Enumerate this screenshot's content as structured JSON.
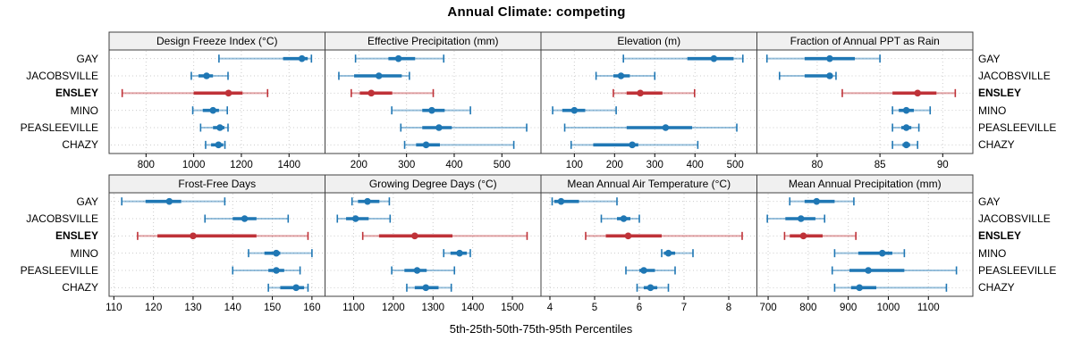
{
  "title": "Annual Climate: competing",
  "caption": "5th-25th-50th-75th-95th Percentiles",
  "colors": {
    "series_blue": "#1f77b4",
    "series_red": "#bf3238",
    "strip_bg": "#f0f0f0",
    "panel_border": "#404040",
    "grid": "#cccccc",
    "text": "#000000"
  },
  "chart_data": {
    "type": "dotplot",
    "subtype": "percentile-intervals (5-25-50-75-95)",
    "title": "Annual Climate: competing",
    "xlabel": "5th-25th-50th-75th-95th Percentiles",
    "layout": {
      "rows": 2,
      "cols": 4
    },
    "grid": "dotted",
    "sites": [
      "GAY",
      "JACOBSVILLE",
      "ENSLEY",
      "MINO",
      "PEASLEEVILLE",
      "CHAZY"
    ],
    "highlight_site": "ENSLEY",
    "percentiles": [
      5,
      25,
      50,
      75,
      95
    ],
    "panels": [
      {
        "title": "Design Freeze Index (°C)",
        "xlim": [
          645,
          1551
        ],
        "ticks": [
          800,
          1000,
          1200,
          1400
        ],
        "series": {
          "GAY": [
            1106,
            1375,
            1454,
            1478,
            1494
          ],
          "JACOBSVILLE": [
            990,
            1020,
            1054,
            1081,
            1144
          ],
          "ENSLEY": [
            700,
            1000,
            1146,
            1205,
            1310
          ],
          "MINO": [
            996,
            1038,
            1081,
            1106,
            1141
          ],
          "PEASLEEVILLE": [
            1029,
            1081,
            1110,
            1129,
            1144
          ],
          "CHAZY": [
            1050,
            1073,
            1104,
            1124,
            1131
          ]
        }
      },
      {
        "title": "Effective Precipitation (mm)",
        "xlim": [
          129,
          582
        ],
        "ticks": [
          200,
          300,
          400,
          500
        ],
        "series": {
          "GAY": [
            193,
            262,
            283,
            318,
            378
          ],
          "JACOBSVILLE": [
            158,
            190,
            242,
            290,
            306
          ],
          "ENSLEY": [
            184,
            202,
            226,
            270,
            356
          ],
          "MINO": [
            269,
            333,
            353,
            380,
            434
          ],
          "PEASLEEVILLE": [
            288,
            333,
            368,
            395,
            552
          ],
          "CHAZY": [
            296,
            320,
            341,
            370,
            525
          ]
        }
      },
      {
        "title": "Elevation (m)",
        "xlim": [
          17,
          554
        ],
        "ticks": [
          100,
          200,
          300,
          400,
          500
        ],
        "series": {
          "GAY": [
            222,
            381,
            447,
            496,
            519
          ],
          "JACOBSVILLE": [
            154,
            197,
            216,
            238,
            300
          ],
          "ENSLEY": [
            197,
            230,
            264,
            319,
            399
          ],
          "MINO": [
            46,
            70,
            100,
            127,
            204
          ],
          "PEASLEEVILLE": [
            76,
            230,
            327,
            393,
            504
          ],
          "CHAZY": [
            92,
            147,
            244,
            259,
            407
          ]
        }
      },
      {
        "title": "Fraction of Annual PPT as Rain",
        "xlim": [
          75.2,
          92.4
        ],
        "ticks": [
          80,
          85,
          90
        ],
        "series": {
          "GAY": [
            76,
            79,
            81,
            83,
            85
          ],
          "JACOBSVILLE": [
            77,
            79,
            81,
            81.2,
            81.5
          ],
          "ENSLEY": [
            82,
            86,
            88,
            89.5,
            91
          ],
          "MINO": [
            86,
            86.5,
            87.1,
            87.7,
            89
          ],
          "PEASLEEVILLE": [
            86,
            86.7,
            87.1,
            87.5,
            88.1
          ],
          "CHAZY": [
            86,
            86.8,
            87.1,
            87.4,
            88
          ]
        }
      },
      {
        "title": "Frost-Free Days",
        "xlim": [
          108.8,
          163.3
        ],
        "ticks": [
          110,
          120,
          130,
          140,
          150,
          160
        ],
        "series": {
          "GAY": [
            112,
            118,
            124,
            127,
            138
          ],
          "JACOBSVILLE": [
            133,
            140,
            143,
            146,
            154
          ],
          "ENSLEY": [
            116,
            121,
            130,
            146,
            159
          ],
          "MINO": [
            144,
            148,
            151,
            152,
            160
          ],
          "PEASLEEVILLE": [
            140,
            149,
            151,
            153,
            157
          ],
          "CHAZY": [
            149,
            152,
            156,
            158,
            159
          ]
        }
      },
      {
        "title": "Growing Degree Days (°C)",
        "xlim": [
          1028,
          1572
        ],
        "ticks": [
          1100,
          1200,
          1300,
          1400,
          1500
        ],
        "series": {
          "GAY": [
            1096,
            1111,
            1135,
            1165,
            1190
          ],
          "JACOBSVILLE": [
            1059,
            1081,
            1105,
            1138,
            1192
          ],
          "ENSLEY": [
            1123,
            1164,
            1254,
            1349,
            1537
          ],
          "MINO": [
            1327,
            1344,
            1367,
            1385,
            1394
          ],
          "PEASLEEVILLE": [
            1196,
            1228,
            1260,
            1284,
            1354
          ],
          "CHAZY": [
            1234,
            1254,
            1282,
            1314,
            1346
          ]
        }
      },
      {
        "title": "Mean Annual Air Temperature (°C)",
        "xlim": [
          3.8,
          8.63
        ],
        "ticks": [
          4,
          5,
          6,
          7,
          8
        ],
        "series": {
          "GAY": [
            4.05,
            4.1,
            4.25,
            4.65,
            5.5
          ],
          "JACOBSVILLE": [
            5.15,
            5.5,
            5.65,
            5.8,
            6.0
          ],
          "ENSLEY": [
            4.8,
            5.25,
            5.75,
            6.5,
            8.3
          ],
          "MINO": [
            6.5,
            6.55,
            6.65,
            6.8,
            7.2
          ],
          "PEASLEEVILLE": [
            5.7,
            6.0,
            6.1,
            6.35,
            6.8
          ],
          "CHAZY": [
            5.95,
            6.1,
            6.25,
            6.4,
            6.65
          ]
        }
      },
      {
        "title": "Mean Annual Precipitation (mm)",
        "xlim": [
          672,
          1211
        ],
        "ticks": [
          700,
          800,
          900,
          1000,
          1100
        ],
        "series": {
          "GAY": [
            754,
            791,
            821,
            866,
            914
          ],
          "JACOBSVILLE": [
            698,
            743,
            782,
            818,
            841
          ],
          "ENSLEY": [
            741,
            754,
            788,
            836,
            919
          ],
          "MINO": [
            866,
            925,
            985,
            1010,
            1040
          ],
          "PEASLEEVILLE": [
            860,
            903,
            950,
            1040,
            1170
          ],
          "CHAZY": [
            866,
            907,
            928,
            970,
            1145
          ]
        }
      }
    ]
  }
}
